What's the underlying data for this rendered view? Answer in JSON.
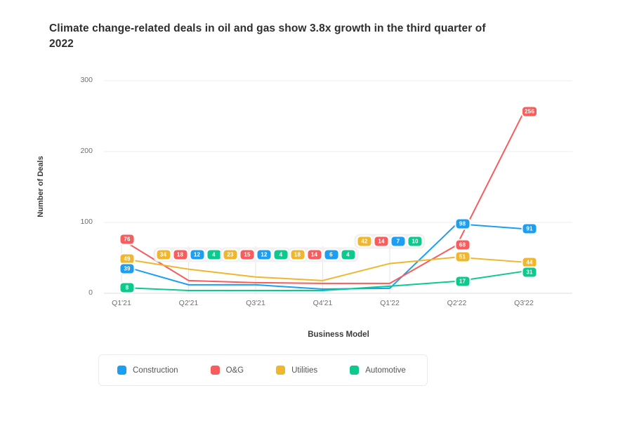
{
  "header": {
    "title_line1": "Climate change-related deals in oil and gas show 3.8x growth in the third quarter of",
    "title_line2": "2022"
  },
  "chart_data": {
    "type": "line",
    "title": "Climate change-related deals in oil and gas show 3.8x growth in the third quarter of 2022",
    "xlabel": "Business Model",
    "ylabel": "Number of Deals",
    "categories": [
      "Q1'21",
      "Q2'21",
      "Q3'21",
      "Q4'21",
      "Q1'22",
      "Q2'22",
      "Q3'22"
    ],
    "ylim": [
      0,
      300
    ],
    "yticks": [
      0,
      100,
      200,
      300
    ],
    "grid": "horizontal",
    "legend_position": "bottom-left",
    "series": [
      {
        "name": "Construction",
        "color": "#1C9FF2",
        "values": [
          39,
          12,
          12,
          6,
          7,
          98,
          91
        ]
      },
      {
        "name": "O&G",
        "color": "#F85C5C",
        "values": [
          76,
          18,
          15,
          14,
          14,
          68,
          256
        ]
      },
      {
        "name": "Utilities",
        "color": "#EFB72D",
        "values": [
          49,
          34,
          23,
          18,
          42,
          51,
          44
        ]
      },
      {
        "name": "Automotive",
        "color": "#0CC98E",
        "values": [
          8,
          4,
          4,
          4,
          10,
          17,
          31
        ]
      }
    ],
    "label_clusters": {
      "columns": [
        1,
        2,
        3,
        4
      ],
      "badge_order": [
        "Utilities",
        "O&G",
        "Construction",
        "Automotive"
      ]
    },
    "colors": {
      "grid": "#ececec",
      "axis": "#dcdcdc",
      "guide": "#e4e4e4",
      "cluster_bg": "#f1f1f2"
    }
  }
}
